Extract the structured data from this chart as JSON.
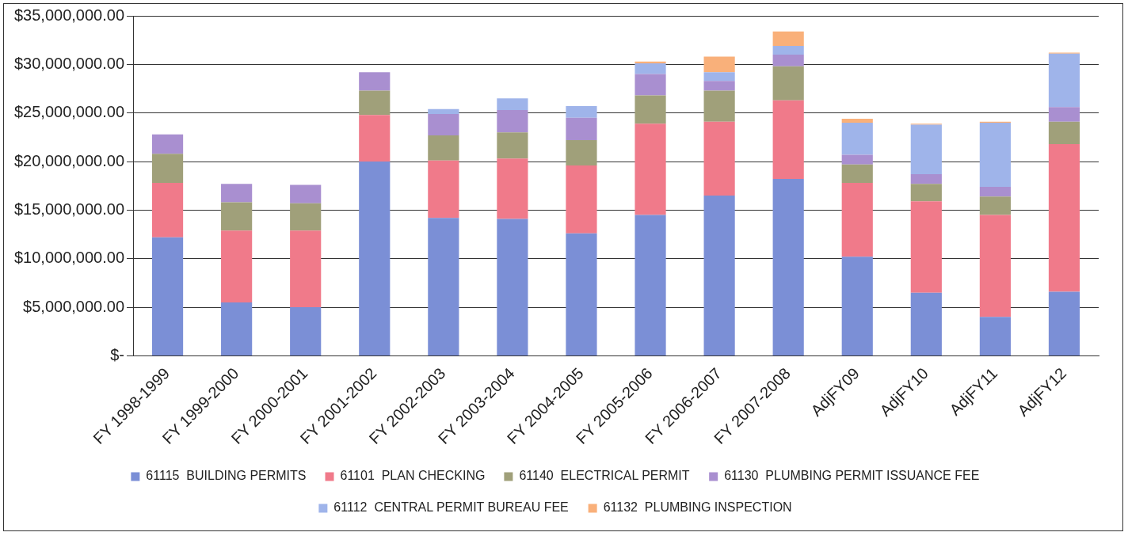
{
  "chart_data": {
    "type": "bar",
    "stacked": true,
    "categories": [
      "FY 1998-1999",
      "FY 1999-2000",
      "FY 2000-2001",
      "FY 2001-2002",
      "FY 2002-2003",
      "FY 2003-2004",
      "FY 2004-2005",
      "FY 2005-2006",
      "FY 2006-2007",
      "FY 2007-2008",
      "AdjFY09",
      "AdjFY10",
      "AdjFY11",
      "AdjFY12"
    ],
    "series": [
      {
        "name": "61115  BUILDING PERMITS",
        "color": "#7b8fd6",
        "values": [
          12200000,
          5500000,
          5000000,
          20000000,
          14200000,
          14100000,
          12600000,
          14500000,
          16500000,
          18200000,
          10200000,
          6500000,
          4000000,
          6600000
        ]
      },
      {
        "name": "61101  PLAN CHECKING",
        "color": "#f07a8a",
        "values": [
          5600000,
          7400000,
          7900000,
          4800000,
          5900000,
          6200000,
          7000000,
          9400000,
          7600000,
          8100000,
          7600000,
          9400000,
          10500000,
          15200000
        ]
      },
      {
        "name": "61140  ELECTRICAL PERMIT",
        "color": "#a0a07a",
        "values": [
          3000000,
          2900000,
          2800000,
          2500000,
          2600000,
          2700000,
          2600000,
          2900000,
          3200000,
          3500000,
          1900000,
          1800000,
          1900000,
          2300000
        ]
      },
      {
        "name": "61130  PLUMBING PERMIT ISSUANCE FEE",
        "color": "#a98fd0",
        "values": [
          2000000,
          1900000,
          1900000,
          1900000,
          2200000,
          2300000,
          2300000,
          2200000,
          1000000,
          1200000,
          1000000,
          1000000,
          1000000,
          1500000
        ]
      },
      {
        "name": "61112  CENTRAL PERMIT BUREAU FEE",
        "color": "#9fb4ea",
        "values": [
          null,
          null,
          null,
          null,
          500000,
          1200000,
          1200000,
          1100000,
          900000,
          900000,
          3300000,
          5100000,
          6600000,
          5500000
        ]
      },
      {
        "name": "61132  PLUMBING INSPECTION",
        "color": "#f9b07a",
        "values": [
          null,
          null,
          null,
          null,
          null,
          null,
          null,
          200000,
          1600000,
          1500000,
          400000,
          100000,
          100000,
          100000
        ]
      }
    ],
    "ylim": [
      0,
      35000000
    ],
    "yticks": [
      {
        "value": 0,
        "label": "$-"
      },
      {
        "value": 5000000,
        "label": "$5,000,000.00"
      },
      {
        "value": 10000000,
        "label": "$10,000,000.00"
      },
      {
        "value": 15000000,
        "label": "$15,000,000.00"
      },
      {
        "value": 20000000,
        "label": "$20,000,000.00"
      },
      {
        "value": 25000000,
        "label": "$25,000,000.00"
      },
      {
        "value": 30000000,
        "label": "$30,000,000.00"
      },
      {
        "value": 35000000,
        "label": "$35,000,000.00"
      }
    ],
    "grid": "y",
    "legend": "bottom"
  }
}
